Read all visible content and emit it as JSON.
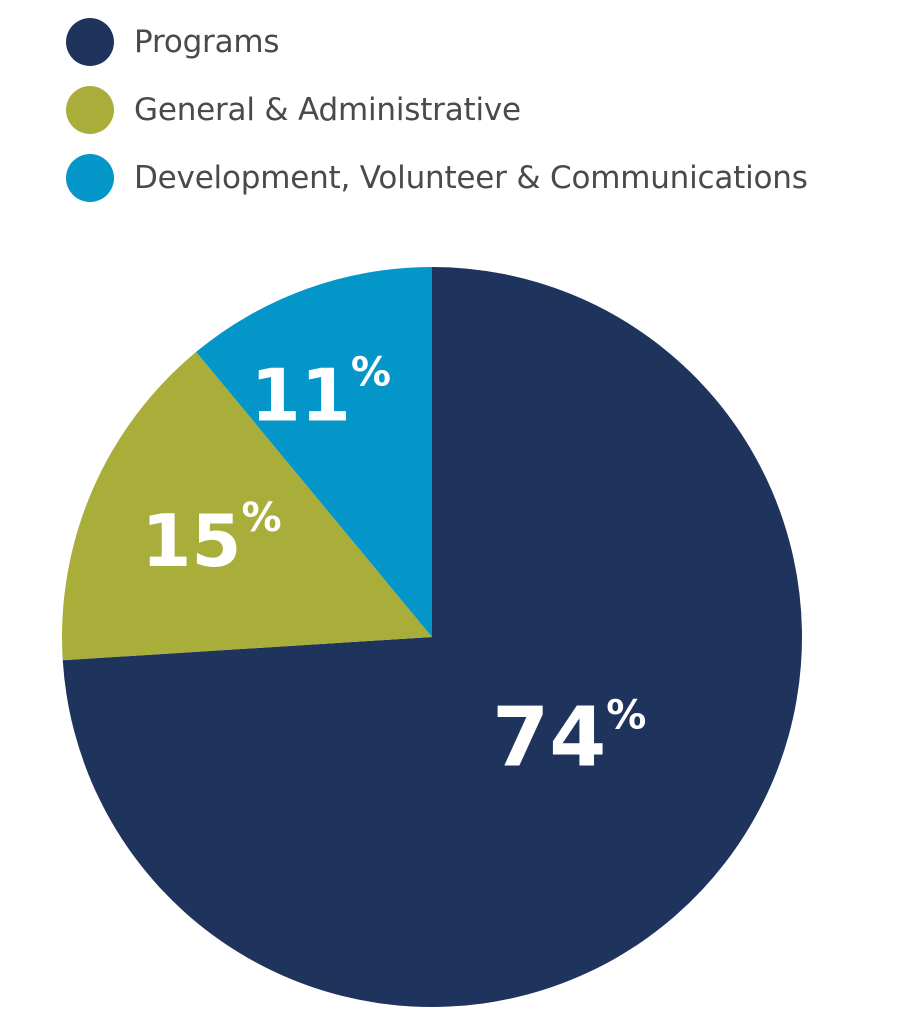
{
  "chart_data": {
    "type": "pie",
    "title": "",
    "categories": [
      "Programs",
      "General & Administrative",
      "Development, Volunteer & Communications"
    ],
    "values": [
      74,
      15,
      11
    ],
    "labels": [
      "74",
      "15",
      "11"
    ],
    "percent_sign": "%",
    "colors": [
      "#1e345c",
      "#a9ae3a",
      "#0495c9"
    ],
    "start_angle_deg": 0,
    "direction": "clockwise",
    "legend_position": "top-left"
  },
  "legend": [
    {
      "label": "Programs",
      "color": "#1e345c"
    },
    {
      "label": "General & Administrative",
      "color": "#a9ae3a"
    },
    {
      "label": "Development, Volunteer & Communications",
      "color": "#0495c9"
    }
  ]
}
